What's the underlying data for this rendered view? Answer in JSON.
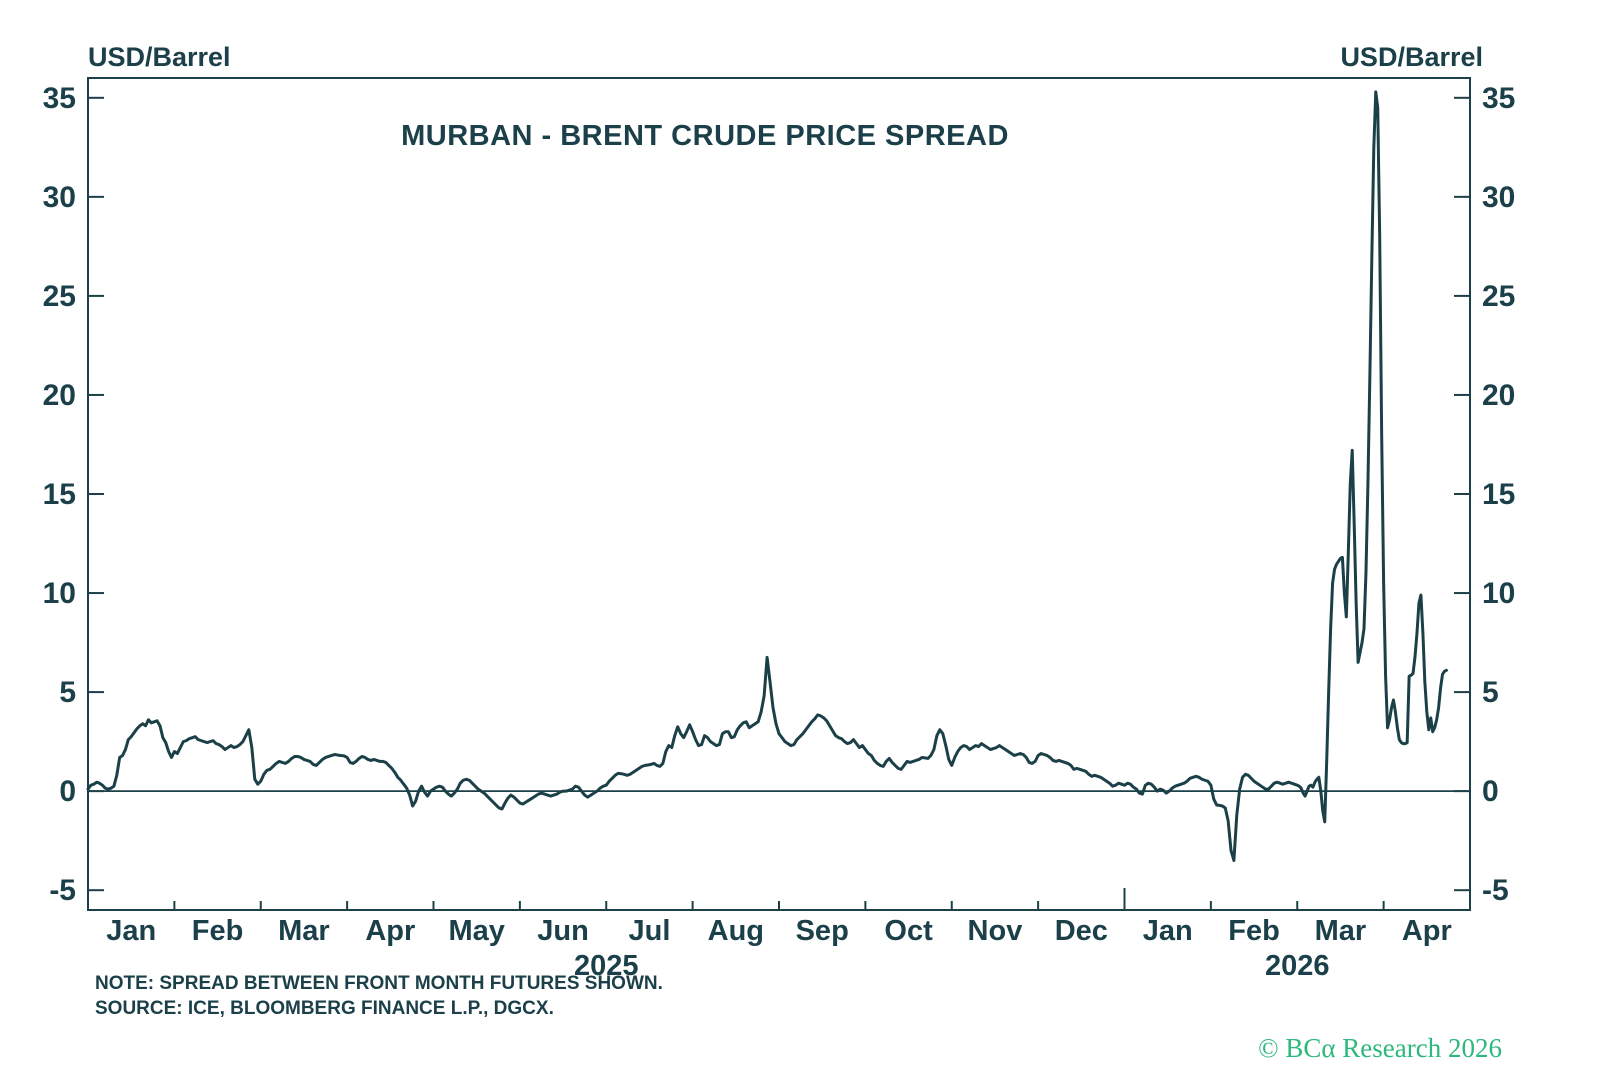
{
  "header": {
    "unit_left": "USD/Barrel",
    "unit_right": "USD/Barrel"
  },
  "footer": {
    "note": "NOTE: SPREAD BETWEEN FRONT MONTH FUTURES SHOWN.",
    "source": "SOURCE: ICE, BLOOMBERG FINANCE L.P., DGCX.",
    "copyright": "© BCα Research 2026"
  },
  "colors": {
    "text": "#1C4049",
    "line": "#1C4048",
    "axis": "#1C4048",
    "copyright_green": "#2DB87C",
    "background": "#FFFFFF"
  },
  "chart_data": {
    "type": "line",
    "title": "MURBAN - BRENT CRUDE PRICE SPREAD",
    "ylabel": "USD/Barrel",
    "grid": false,
    "legend": "none",
    "zero_line": true,
    "y_axis": {
      "min": -6,
      "max": 36,
      "ticks": [
        -5,
        0,
        5,
        10,
        15,
        20,
        25,
        30,
        35
      ],
      "mirrored_right": true
    },
    "x_axis": {
      "start": "Jan 2025",
      "end": "Apr 2026",
      "month_labels": [
        "Jan",
        "Feb",
        "Mar",
        "Apr",
        "May",
        "Jun",
        "Jul",
        "Aug",
        "Sep",
        "Oct",
        "Nov",
        "Dec",
        "Jan",
        "Feb",
        "Mar",
        "Apr"
      ],
      "year_labels": [
        {
          "text": "2025",
          "position_month": 6
        },
        {
          "text": "2026",
          "position_month": 14
        }
      ],
      "year_divider_month": 12
    },
    "series": [
      {
        "name": "Murban - Brent crude price spread (USD/Barrel)",
        "color": "#1C4048",
        "months": [
          {
            "label": "Jan",
            "year": 2025,
            "values": [
              0.1,
              0.3,
              0.35,
              0.45,
              0.4,
              0.3,
              0.15,
              0.1,
              0.15,
              0.25,
              0.8,
              1.7,
              1.8,
              2.1,
              2.6,
              2.75,
              2.95,
              3.15,
              3.3,
              3.4,
              3.3,
              3.6,
              3.45,
              3.5,
              3.55,
              3.3,
              2.7,
              2.45,
              2.0,
              1.7
            ]
          },
          {
            "label": "Feb",
            "year": 2025,
            "values": [
              2.0,
              1.9,
              2.2,
              2.5,
              2.55,
              2.65,
              2.7,
              2.75,
              2.6,
              2.55,
              2.5,
              2.45,
              2.5,
              2.55,
              2.4,
              2.35,
              2.25,
              2.1,
              2.2,
              2.3,
              2.2,
              2.25,
              2.35,
              2.5,
              2.8,
              3.1,
              2.2,
              0.6,
              0.35
            ]
          },
          {
            "label": "Mar",
            "year": 2025,
            "values": [
              0.5,
              0.85,
              1.05,
              1.1,
              1.25,
              1.4,
              1.5,
              1.45,
              1.4,
              1.5,
              1.65,
              1.75,
              1.75,
              1.7,
              1.6,
              1.55,
              1.5,
              1.35,
              1.3,
              1.45,
              1.6,
              1.7,
              1.75,
              1.8,
              1.85,
              1.82,
              1.8,
              1.78
            ]
          },
          {
            "label": "Apr",
            "year": 2025,
            "values": [
              1.7,
              1.45,
              1.4,
              1.5,
              1.65,
              1.75,
              1.7,
              1.6,
              1.55,
              1.6,
              1.55,
              1.5,
              1.5,
              1.45,
              1.3,
              1.15,
              0.95,
              0.7,
              0.55,
              0.35,
              0.15,
              -0.2,
              -0.75,
              -0.5,
              0.0,
              0.25,
              -0.05,
              -0.25,
              0.0
            ]
          },
          {
            "label": "May",
            "year": 2025,
            "values": [
              0.1,
              0.2,
              0.25,
              0.2,
              0.0,
              -0.15,
              -0.25,
              -0.1,
              0.1,
              0.4,
              0.55,
              0.6,
              0.55,
              0.4,
              0.25,
              0.1,
              0.0,
              -0.1,
              -0.25,
              -0.4,
              -0.55,
              -0.7,
              -0.85,
              -0.9,
              -0.6,
              -0.35,
              -0.2,
              -0.3,
              -0.45
            ]
          },
          {
            "label": "Jun",
            "year": 2025,
            "values": [
              -0.6,
              -0.65,
              -0.55,
              -0.45,
              -0.35,
              -0.25,
              -0.15,
              -0.1,
              -0.15,
              -0.2,
              -0.25,
              -0.2,
              -0.15,
              -0.05,
              0.0,
              0.0,
              0.05,
              0.1,
              0.25,
              0.2,
              0.0,
              -0.2,
              -0.3,
              -0.2,
              -0.1,
              0.0,
              0.15,
              0.25
            ]
          },
          {
            "label": "Jul",
            "year": 2025,
            "values": [
              0.3,
              0.5,
              0.65,
              0.8,
              0.9,
              0.88,
              0.85,
              0.8,
              0.85,
              0.95,
              1.05,
              1.15,
              1.25,
              1.3,
              1.32,
              1.35,
              1.4,
              1.3,
              1.25,
              1.4,
              2.0,
              2.3,
              2.2,
              2.8,
              3.25,
              2.9,
              2.7,
              3.0,
              3.35
            ]
          },
          {
            "label": "Aug",
            "year": 2025,
            "values": [
              3.0,
              2.6,
              2.3,
              2.35,
              2.8,
              2.7,
              2.5,
              2.4,
              2.3,
              2.35,
              2.9,
              3.0,
              3.0,
              2.7,
              2.75,
              3.1,
              3.3,
              3.45,
              3.5,
              3.2,
              3.3,
              3.4,
              3.5,
              4.0,
              4.8,
              6.75,
              5.5,
              4.2,
              3.4
            ]
          },
          {
            "label": "Sep",
            "year": 2025,
            "values": [
              2.9,
              2.7,
              2.5,
              2.4,
              2.3,
              2.35,
              2.6,
              2.75,
              2.9,
              3.1,
              3.3,
              3.5,
              3.65,
              3.85,
              3.8,
              3.7,
              3.55,
              3.3,
              3.05,
              2.8,
              2.7,
              2.65,
              2.5,
              2.4,
              2.45,
              2.6,
              2.4,
              2.2,
              2.3
            ]
          },
          {
            "label": "Oct",
            "year": 2025,
            "values": [
              2.1,
              1.9,
              1.8,
              1.55,
              1.4,
              1.3,
              1.25,
              1.5,
              1.65,
              1.45,
              1.3,
              1.15,
              1.1,
              1.3,
              1.5,
              1.45,
              1.5,
              1.55,
              1.6,
              1.7,
              1.68,
              1.65,
              1.8,
              2.1,
              2.8,
              3.1,
              2.9,
              2.3,
              1.6
            ]
          },
          {
            "label": "Nov",
            "year": 2025,
            "values": [
              1.3,
              1.7,
              2.0,
              2.2,
              2.3,
              2.25,
              2.1,
              2.2,
              2.3,
              2.25,
              2.4,
              2.3,
              2.2,
              2.1,
              2.15,
              2.2,
              2.3,
              2.2,
              2.1,
              2.0,
              1.9,
              1.8,
              1.85,
              1.9,
              1.85,
              1.7,
              1.45,
              1.4,
              1.5
            ]
          },
          {
            "label": "Dec",
            "year": 2025,
            "values": [
              1.8,
              1.9,
              1.85,
              1.8,
              1.7,
              1.55,
              1.5,
              1.55,
              1.5,
              1.45,
              1.4,
              1.3,
              1.1,
              1.15,
              1.1,
              1.05,
              1.0,
              0.85,
              0.75,
              0.8,
              0.75,
              0.7,
              0.6,
              0.5,
              0.4,
              0.25,
              0.3,
              0.4,
              0.35
            ]
          },
          {
            "label": "Jan",
            "year": 2026,
            "values": [
              0.3,
              0.4,
              0.35,
              0.2,
              0.1,
              -0.1,
              -0.15,
              0.3,
              0.4,
              0.35,
              0.2,
              0.0,
              0.1,
              0.05,
              -0.1,
              0.0,
              0.15,
              0.25,
              0.3,
              0.35,
              0.4,
              0.5,
              0.65,
              0.7,
              0.75,
              0.7,
              0.6,
              0.55,
              0.5
            ]
          },
          {
            "label": "Feb",
            "year": 2026,
            "values": [
              0.3,
              -0.4,
              -0.7,
              -0.72,
              -0.75,
              -0.85,
              -1.5,
              -3.0,
              -3.5,
              -1.2,
              0.1,
              0.7,
              0.85,
              0.8,
              0.65,
              0.5,
              0.4,
              0.3,
              0.2,
              0.1,
              0.1,
              0.25,
              0.4,
              0.45,
              0.4,
              0.35,
              0.4,
              0.45,
              0.4,
              0.35
            ]
          },
          {
            "label": "Mar",
            "year": 2026,
            "values": [
              0.3,
              0.25,
              0.15,
              -0.1,
              -0.25,
              0.0,
              0.25,
              0.3,
              0.2,
              0.45,
              0.6,
              0.7,
              0.0,
              -1.0,
              -1.55,
              1.5,
              5.0,
              8.2,
              10.5,
              11.2,
              11.45,
              11.6,
              11.75,
              11.8,
              10.0,
              8.8,
              12.0,
              15.5,
              17.2,
              13.5,
              9.5,
              6.5,
              7.0,
              7.5,
              8.2,
              11.0,
              15.5,
              21.0,
              27.0,
              32.5,
              35.3,
              34.5,
              28.0,
              18.0
            ]
          },
          {
            "label": "Apr",
            "year": 2026,
            "fraction": 0.75,
            "values": [
              10.5,
              5.8,
              3.2,
              3.6,
              4.2,
              4.6,
              4.0,
              3.2,
              2.6,
              2.45,
              2.4,
              2.4,
              2.45,
              5.8,
              5.85,
              5.95,
              6.8,
              8.0,
              9.5,
              9.9,
              8.0,
              5.5,
              4.0,
              3.1,
              3.7,
              3.0,
              3.2,
              3.6,
              4.2,
              5.2,
              5.9,
              6.05,
              6.1
            ]
          }
        ]
      }
    ]
  }
}
